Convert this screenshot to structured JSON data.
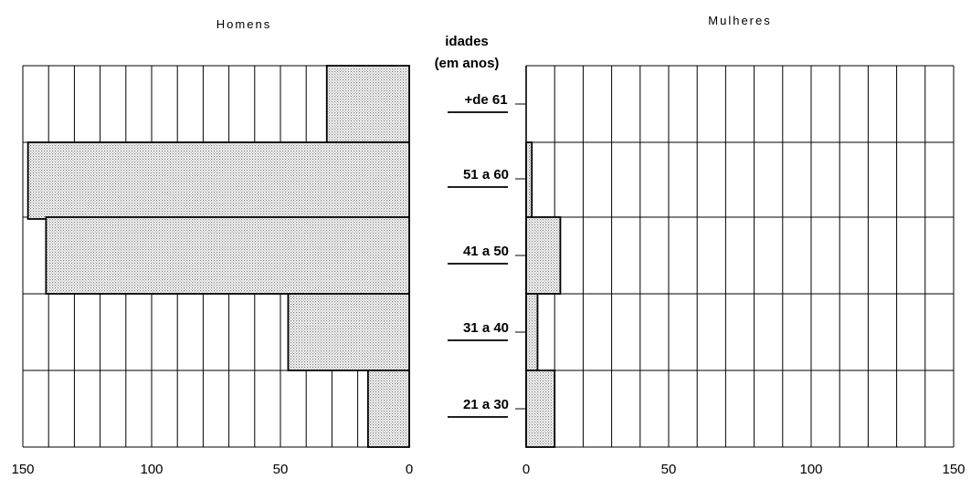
{
  "chart_data": [
    {
      "type": "bar",
      "title": "Homens",
      "orientation": "horizontal",
      "x_direction": "reversed",
      "categories": [
        "+de 61",
        "51 a 60",
        "41 a 50",
        "31 a 40",
        "21 a 30"
      ],
      "values": [
        32,
        148,
        141,
        47,
        16
      ],
      "xlim": [
        0,
        150
      ],
      "xticks": [
        "150",
        "100",
        "50",
        "0"
      ],
      "grid": true,
      "fill": "dotted-gray"
    },
    {
      "type": "bar",
      "title": "Mulheres",
      "orientation": "horizontal",
      "categories": [
        "+de 61",
        "51 a 60",
        "41 a 50",
        "31 a 40",
        "21 a 30"
      ],
      "values": [
        0,
        2,
        12,
        4,
        10
      ],
      "xlim": [
        0,
        150
      ],
      "xticks": [
        "0",
        "50",
        "100",
        "150"
      ],
      "grid": true,
      "fill": "dotted-gray"
    }
  ],
  "age_header": {
    "line1": "idades",
    "line2": "(em anos)"
  }
}
